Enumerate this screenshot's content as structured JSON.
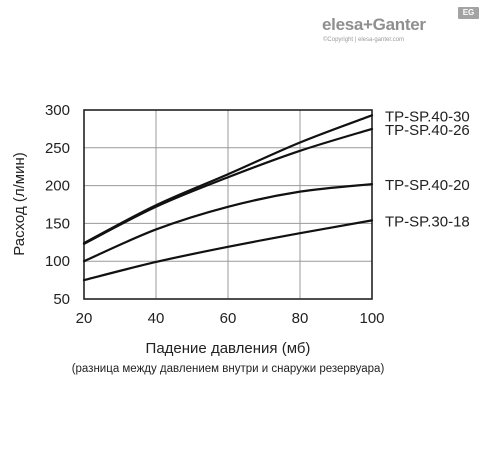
{
  "logo": {
    "main": "elesa+Ganter",
    "sub": "©Copyright | elesa-ganter.com",
    "badge": "EG"
  },
  "chart_data": {
    "type": "line",
    "title": "",
    "xlabel": "Падение давления (мб)",
    "xlabel_note": "(разница между давлением внутри и снаружи резервуара)",
    "ylabel": "Расход (л/мин)",
    "xlim": [
      20,
      100
    ],
    "ylim": [
      50,
      300
    ],
    "xticks": [
      20,
      40,
      60,
      80,
      100
    ],
    "yticks": [
      50,
      100,
      150,
      200,
      250,
      300
    ],
    "grid": true,
    "legend": "right-end-labels",
    "x": [
      20,
      40,
      60,
      80,
      100
    ],
    "series": [
      {
        "name": "TP-SP.40-30",
        "values": [
          124,
          174,
          215,
          257,
          293
        ]
      },
      {
        "name": "TP-SP.40-26",
        "values": [
          123,
          172,
          211,
          246,
          275
        ]
      },
      {
        "name": "TP-SP.40-20",
        "values": [
          100,
          142,
          172,
          192,
          202
        ]
      },
      {
        "name": "TP-SP.30-18",
        "values": [
          75,
          99,
          119,
          137,
          154
        ]
      }
    ]
  }
}
